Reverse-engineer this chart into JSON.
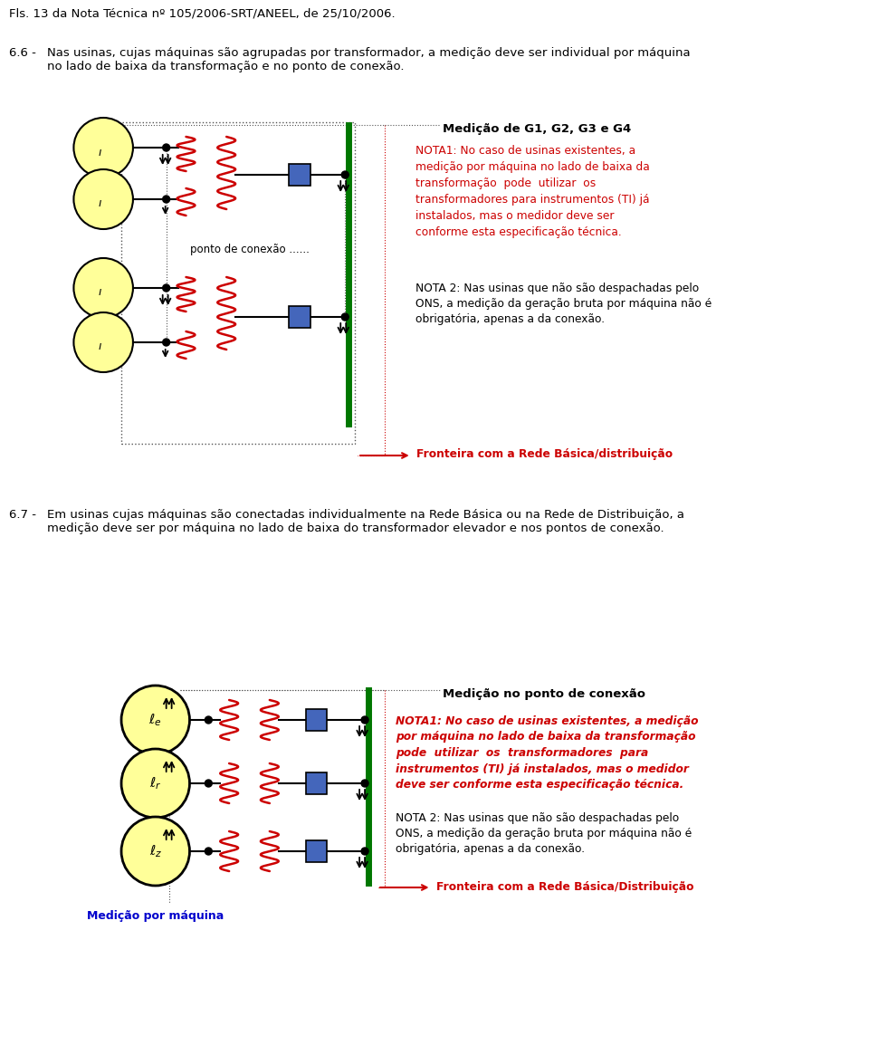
{
  "bg_color": "#ffffff",
  "title_text": "Fls. 13 da Nota Técnica nº 105/2006-SRT/ANEEL, de 25/10/2006.",
  "sec66_label": "6.6 -",
  "sec66_text": "Nas usinas, cujas máquinas são agrupadas por transformador, a medição deve ser individual por máquina\nno lado de baixa da transformação e no ponto de conexão.",
  "sec67_label": "6.7 -",
  "sec67_text": "Em usinas cujas máquinas são conectadas individualmente na Rede Básica ou na Rede de Distribuição, a\nmedição deve ser por máquina no lado de baixa do transformador elevador e nos pontos de conexão.",
  "diag1_title": "Medição de G1, G2, G3 e G4",
  "diag1_nota1": "NOTA1: No caso de usinas existentes, a\nmedição por máquina no lado de baixa da\ntransformação  pode  utilizar  os\ntransformadores para instrumentos (TI) já\ninstalados, mas o medidor deve ser\nconforme esta especificação técnica.",
  "diag1_nota2": "NOTA 2: Nas usinas que não são despachadas pelo\nONS, a medição da geração bruta por máquina não é\nobrigatória, apenas a da conexão.",
  "diag1_fronteira": "Fronteira com a Rede Básica/distribuição",
  "diag1_ponto": "ponto de conexão ......",
  "diag2_title": "Medição no ponto de conexão",
  "diag2_nota1_bold": "NOTA1: No caso de usinas existentes, a medição\npor máquina no lado de baixa da transformação\npode  utilizar  os  transformadores  para\ninstrumentos (TI) já instalados, mas o medidor\ndeve ser conforme esta especificação técnica.",
  "diag2_nota2": "NOTA 2: Nas usinas que não são despachadas pelo\nONS, a medição da geração bruta por máquina não é\nobrigatória, apenas a da conexão.",
  "diag2_fronteira": "Fronteira com a Rede Básica/Distribuição",
  "diag2_medicao_maquina": "Medição por máquina",
  "red_color": "#cc0000",
  "black_color": "#000000",
  "blue_label": "#0000cc",
  "yellow_color": "#ffff99",
  "green_color": "#007700",
  "coil_color": "#cc0000",
  "box_color": "#4466bb"
}
